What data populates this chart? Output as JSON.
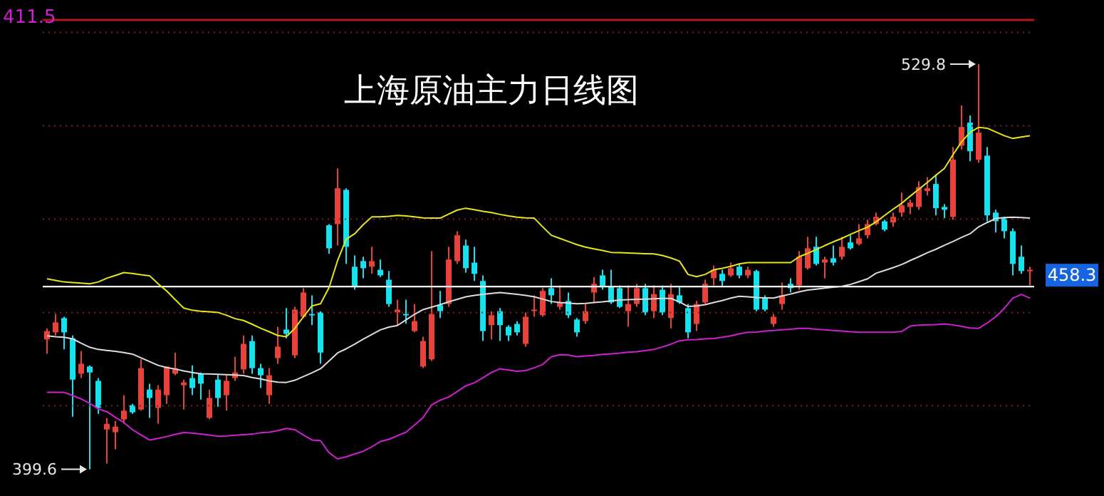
{
  "chart_data": {
    "type": "candlestick",
    "title": "上海原油主力日线图",
    "categories": [
      null,
      null,
      null,
      null,
      null,
      null,
      null,
      null,
      null,
      null,
      null,
      null,
      null,
      null,
      null,
      null,
      null,
      null,
      null,
      null,
      null,
      null,
      null,
      null,
      null,
      null,
      null,
      null,
      null,
      null,
      null,
      null,
      null,
      null,
      null,
      null,
      null,
      null,
      null,
      null,
      null,
      null,
      null,
      null,
      null,
      null,
      null,
      null,
      null,
      null,
      null,
      null,
      null,
      null,
      null,
      null,
      null,
      null,
      null,
      null,
      null,
      null,
      null,
      null,
      null,
      null,
      null,
      null,
      null,
      null,
      null,
      null,
      null,
      null,
      null,
      null,
      null,
      null,
      null,
      null,
      null,
      null,
      null,
      null,
      null,
      null,
      null,
      null,
      null,
      null,
      null,
      null,
      null,
      null,
      null,
      null,
      null,
      null,
      null,
      null,
      null,
      null,
      null,
      null,
      null,
      null,
      null,
      null,
      null,
      null,
      null,
      null,
      null,
      null,
      null,
      null
    ],
    "ohlc": [
      [
        441.3,
        444.9,
        436.7,
        444.0
      ],
      [
        443.6,
        449.5,
        442.6,
        446.8
      ],
      [
        448.2,
        448.6,
        438.1,
        443.6
      ],
      [
        441.7,
        442.6,
        416.5,
        428.4
      ],
      [
        430.3,
        437.6,
        428.9,
        433.5
      ],
      [
        432.6,
        433.0,
        399.6,
        430.7
      ],
      [
        428.0,
        428.9,
        417.4,
        419.3
      ],
      [
        412.4,
        416.1,
        401.4,
        414.2
      ],
      [
        411.5,
        415.1,
        406.0,
        413.3
      ],
      [
        415.6,
        423.4,
        414.2,
        418.4
      ],
      [
        420.2,
        420.6,
        417.4,
        417.9
      ],
      [
        418.8,
        434.9,
        418.4,
        432.1
      ],
      [
        425.2,
        427.1,
        416.1,
        422.5
      ],
      [
        419.3,
        426.6,
        414.2,
        425.2
      ],
      [
        423.4,
        432.6,
        420.6,
        432.6
      ],
      [
        430.3,
        437.1,
        429.8,
        432.1
      ],
      [
        426.6,
        428.4,
        418.8,
        427.5
      ],
      [
        428.9,
        433.0,
        423.4,
        425.7
      ],
      [
        430.3,
        430.7,
        422.0,
        427.1
      ],
      [
        416.1,
        425.2,
        415.6,
        422.5
      ],
      [
        428.4,
        430.3,
        419.7,
        422.5
      ],
      [
        423.4,
        429.8,
        418.4,
        428.0
      ],
      [
        428.9,
        435.8,
        428.0,
        430.7
      ],
      [
        431.7,
        442.6,
        430.3,
        439.9
      ],
      [
        440.8,
        442.6,
        430.3,
        432.1
      ],
      [
        432.1,
        433.5,
        425.7,
        429.8
      ],
      [
        423.4,
        432.1,
        420.6,
        429.8
      ],
      [
        435.3,
        445.4,
        433.5,
        439.0
      ],
      [
        444.5,
        451.4,
        441.7,
        443.1
      ],
      [
        436.2,
        451.8,
        435.3,
        450.9
      ],
      [
        448.6,
        457.8,
        448.2,
        456.4
      ],
      [
        449.5,
        455.5,
        445.9,
        449.5
      ],
      [
        450.0,
        450.4,
        433.5,
        437.1
      ],
      [
        478.0,
        478.4,
        468.8,
        470.6
      ],
      [
        478.4,
        496.3,
        471.5,
        489.9
      ],
      [
        489.4,
        489.9,
        465.6,
        471.1
      ],
      [
        464.7,
        468.3,
        457.3,
        458.2
      ],
      [
        466.5,
        467.9,
        461.0,
        464.2
      ],
      [
        464.7,
        471.1,
        462.4,
        466.5
      ],
      [
        463.7,
        467.0,
        461.4,
        461.9
      ],
      [
        460.5,
        463.3,
        451.8,
        452.7
      ],
      [
        450.0,
        454.1,
        445.9,
        450.9
      ],
      [
        449.5,
        454.1,
        446.3,
        449.5
      ],
      [
        444.0,
        452.7,
        443.6,
        447.2
      ],
      [
        432.6,
        442.2,
        432.1,
        440.8
      ],
      [
        434.9,
        469.7,
        434.4,
        449.5
      ],
      [
        452.3,
        456.9,
        448.2,
        450.4
      ],
      [
        452.7,
        471.1,
        451.8,
        467.0
      ],
      [
        466.5,
        476.1,
        465.6,
        474.8
      ],
      [
        471.5,
        473.4,
        462.8,
        464.2
      ],
      [
        466.0,
        471.1,
        460.1,
        462.4
      ],
      [
        460.1,
        461.9,
        440.8,
        444.0
      ],
      [
        445.9,
        450.4,
        441.3,
        449.1
      ],
      [
        450.4,
        451.4,
        440.8,
        445.9
      ],
      [
        445.4,
        445.9,
        440.8,
        442.6
      ],
      [
        446.3,
        447.2,
        442.6,
        443.6
      ],
      [
        439.9,
        450.0,
        439.0,
        448.6
      ],
      [
        450.9,
        455.5,
        448.6,
        450.9
      ],
      [
        449.1,
        457.8,
        448.6,
        456.9
      ],
      [
        457.8,
        461.0,
        452.7,
        455.5
      ],
      [
        451.8,
        458.7,
        450.9,
        453.2
      ],
      [
        453.7,
        456.4,
        448.2,
        449.1
      ],
      [
        447.7,
        448.2,
        442.2,
        443.6
      ],
      [
        447.2,
        452.7,
        446.3,
        450.4
      ],
      [
        456.4,
        461.4,
        453.2,
        459.2
      ],
      [
        461.9,
        463.7,
        457.3,
        458.2
      ],
      [
        458.2,
        463.7,
        452.7,
        453.2
      ],
      [
        457.8,
        458.7,
        451.4,
        451.8
      ],
      [
        450.4,
        458.7,
        445.4,
        452.7
      ],
      [
        452.7,
        459.2,
        451.8,
        457.8
      ],
      [
        457.8,
        459.2,
        449.1,
        450.0
      ],
      [
        450.4,
        458.7,
        448.2,
        455.9
      ],
      [
        457.3,
        458.7,
        449.1,
        450.0
      ],
      [
        448.2,
        459.2,
        444.9,
        455.9
      ],
      [
        455.5,
        458.2,
        452.7,
        453.2
      ],
      [
        451.4,
        452.7,
        441.7,
        443.6
      ],
      [
        446.3,
        453.7,
        444.0,
        452.7
      ],
      [
        453.2,
        460.5,
        452.7,
        459.2
      ],
      [
        461.0,
        465.1,
        458.7,
        463.7
      ],
      [
        462.4,
        463.7,
        458.2,
        460.1
      ],
      [
        461.9,
        466.0,
        461.4,
        464.2
      ],
      [
        464.7,
        465.6,
        461.0,
        461.9
      ],
      [
        461.9,
        464.7,
        461.0,
        463.7
      ],
      [
        463.3,
        463.7,
        450.4,
        450.9
      ],
      [
        454.6,
        455.5,
        450.4,
        450.9
      ],
      [
        446.3,
        449.5,
        445.4,
        448.6
      ],
      [
        452.7,
        459.6,
        450.9,
        455.5
      ],
      [
        459.2,
        461.0,
        456.4,
        457.8
      ],
      [
        458.7,
        469.7,
        457.3,
        467.9
      ],
      [
        464.2,
        474.3,
        463.7,
        470.6
      ],
      [
        471.1,
        474.3,
        465.1,
        465.6
      ],
      [
        466.0,
        467.9,
        461.0,
        467.0
      ],
      [
        467.4,
        471.5,
        465.1,
        466.0
      ],
      [
        467.9,
        474.3,
        467.0,
        471.1
      ],
      [
        472.5,
        474.8,
        470.2,
        470.6
      ],
      [
        472.0,
        478.4,
        471.5,
        473.8
      ],
      [
        474.8,
        479.8,
        473.8,
        478.4
      ],
      [
        478.4,
        482.1,
        478.0,
        480.7
      ],
      [
        479.3,
        479.8,
        476.1,
        476.6
      ],
      [
        478.9,
        482.1,
        477.5,
        480.7
      ],
      [
        482.1,
        488.5,
        480.7,
        484.4
      ],
      [
        483.9,
        486.2,
        481.6,
        485.3
      ],
      [
        483.9,
        492.2,
        483.0,
        490.3
      ],
      [
        489.0,
        493.5,
        487.6,
        489.9
      ],
      [
        491.3,
        494.0,
        481.2,
        483.5
      ],
      [
        483.9,
        484.8,
        480.3,
        483.0
      ],
      [
        480.7,
        503.2,
        479.8,
        499.1
      ],
      [
        503.6,
        516.5,
        502.3,
        509.6
      ],
      [
        511.0,
        513.3,
        498.6,
        501.8
      ],
      [
        499.1,
        529.8,
        498.1,
        507.8
      ],
      [
        500.4,
        503.2,
        479.3,
        481.2
      ],
      [
        482.1,
        483.0,
        475.7,
        479.3
      ],
      [
        480.3,
        480.7,
        473.8,
        476.1
      ],
      [
        476.1,
        477.0,
        461.9,
        465.6
      ],
      [
        467.9,
        471.5,
        462.4,
        463.3
      ],
      [
        463.7,
        464.7,
        458.7,
        463.7
      ]
    ],
    "series": [
      {
        "type": "line",
        "color": "#e6e619",
        "values": [
          460.8,
          460.3,
          459.8,
          459.6,
          459.4,
          459.2,
          459.8,
          461.0,
          461.9,
          462.8,
          462.5,
          462.1,
          461.8,
          459.2,
          456.9,
          454.1,
          451.4,
          450.7,
          450.4,
          450.2,
          450.0,
          449.1,
          448.0,
          447.4,
          446.2,
          444.9,
          443.8,
          442.6,
          442.2,
          444.9,
          448.6,
          452.1,
          452.8,
          458.0,
          466.7,
          473.5,
          475.3,
          478.2,
          480.7,
          480.7,
          480.9,
          481.2,
          481.0,
          480.7,
          480.4,
          480.3,
          480.3,
          481.6,
          482.9,
          483.5,
          483.0,
          482.5,
          482.1,
          481.5,
          481.0,
          480.6,
          480.4,
          480.3,
          477.5,
          474.8,
          473.8,
          472.8,
          471.8,
          471.0,
          470.4,
          469.9,
          469.3,
          469.2,
          469.1,
          469.0,
          468.9,
          468.8,
          468.3,
          467.5,
          466.5,
          462.2,
          461.5,
          462.2,
          463.7,
          464.2,
          464.8,
          465.6,
          466.0,
          466.0,
          466.0,
          466.0,
          466.0,
          466.0,
          467.9,
          469.0,
          470.2,
          471.5,
          472.7,
          473.8,
          475.1,
          476.3,
          477.4,
          479.1,
          481.2,
          483.2,
          485.1,
          487.4,
          489.6,
          491.8,
          494.1,
          496.3,
          500.7,
          504.8,
          507.9,
          509.5,
          509.2,
          508.0,
          506.8,
          505.9,
          506.4,
          506.8
        ]
      },
      {
        "type": "line",
        "color": "#dcdcdc",
        "values": [
          442.5,
          442.2,
          442.0,
          441.5,
          440.1,
          438.8,
          438.1,
          437.8,
          437.5,
          437.1,
          436.6,
          435.4,
          434.2,
          433.0,
          432.3,
          431.8,
          431.2,
          430.7,
          430.3,
          430.2,
          430.1,
          430.0,
          429.9,
          429.7,
          429.1,
          428.6,
          428.0,
          427.6,
          427.5,
          428.2,
          429.4,
          430.6,
          431.9,
          434.4,
          437.0,
          438.3,
          439.8,
          441.4,
          442.9,
          444.4,
          445.3,
          445.8,
          447.6,
          449.4,
          450.9,
          451.7,
          452.5,
          453.4,
          454.2,
          455.0,
          455.5,
          455.8,
          456.1,
          456.4,
          456.1,
          455.8,
          455.5,
          455.0,
          454.3,
          453.5,
          453.2,
          453.0,
          452.8,
          452.9,
          453.2,
          453.4,
          453.7,
          454.0,
          454.1,
          454.2,
          454.3,
          454.4,
          454.5,
          454.5,
          453.4,
          451.9,
          452.1,
          452.5,
          453.2,
          453.8,
          454.6,
          455.2,
          455.0,
          454.8,
          454.7,
          454.6,
          455.3,
          455.9,
          456.6,
          457.2,
          457.5,
          457.8,
          458.1,
          458.4,
          459.0,
          459.9,
          460.8,
          462.6,
          463.5,
          464.4,
          465.4,
          466.7,
          467.9,
          469.2,
          470.3,
          471.6,
          472.8,
          474.1,
          475.3,
          477.5,
          478.9,
          480.2,
          480.5,
          480.6,
          480.5,
          480.3
        ]
      },
      {
        "type": "line",
        "color": "#d01fd0",
        "values": [
          424.3,
          424.3,
          424.3,
          423.3,
          422.2,
          420.8,
          419.0,
          418.1,
          416.3,
          414.6,
          412.3,
          410.6,
          409.0,
          409.5,
          410.1,
          410.8,
          411.4,
          411.2,
          410.9,
          410.6,
          410.2,
          410.3,
          410.5,
          410.7,
          410.9,
          411.3,
          411.5,
          412.0,
          412.7,
          412.3,
          410.6,
          409.0,
          408.8,
          404.9,
          402.9,
          403.6,
          404.5,
          405.4,
          406.8,
          408.5,
          409.2,
          410.4,
          411.5,
          413.8,
          416.2,
          420.3,
          421.8,
          422.8,
          424.6,
          426.4,
          427.4,
          429.0,
          430.7,
          431.9,
          431.5,
          431.1,
          431.3,
          432.2,
          433.3,
          435.8,
          436.4,
          436.3,
          435.8,
          436.0,
          436.2,
          436.5,
          436.7,
          436.9,
          437.2,
          437.4,
          437.7,
          438.1,
          438.9,
          439.8,
          440.9,
          441.2,
          441.3,
          441.5,
          441.6,
          442.0,
          442.5,
          443.1,
          443.6,
          443.7,
          444.0,
          444.2,
          444.4,
          444.6,
          444.9,
          444.9,
          444.6,
          444.4,
          444.2,
          444.0,
          443.8,
          443.6,
          443.6,
          443.6,
          443.6,
          443.6,
          443.9,
          445.6,
          445.9,
          446.0,
          446.1,
          446.3,
          446.0,
          445.5,
          445.0,
          444.9,
          446.6,
          448.6,
          451.3,
          454.6,
          455.8,
          454.6
        ]
      }
    ],
    "ylim": [
      391,
      544
    ],
    "yticks": [
      {
        "value": 420,
        "label": null
      },
      {
        "value": 450,
        "label": null
      },
      {
        "value": 480,
        "label": null
      },
      {
        "value": 510,
        "label": null
      },
      {
        "value": 540,
        "label": null
      }
    ],
    "grid": "y",
    "tick_labels": false,
    "ref_lines": [
      {
        "axis": "y",
        "value": 458.3,
        "label": "458.3",
        "color": "#ffffff"
      }
    ],
    "annotations": [
      "411.5",
      "529.8",
      "399.6"
    ]
  }
}
